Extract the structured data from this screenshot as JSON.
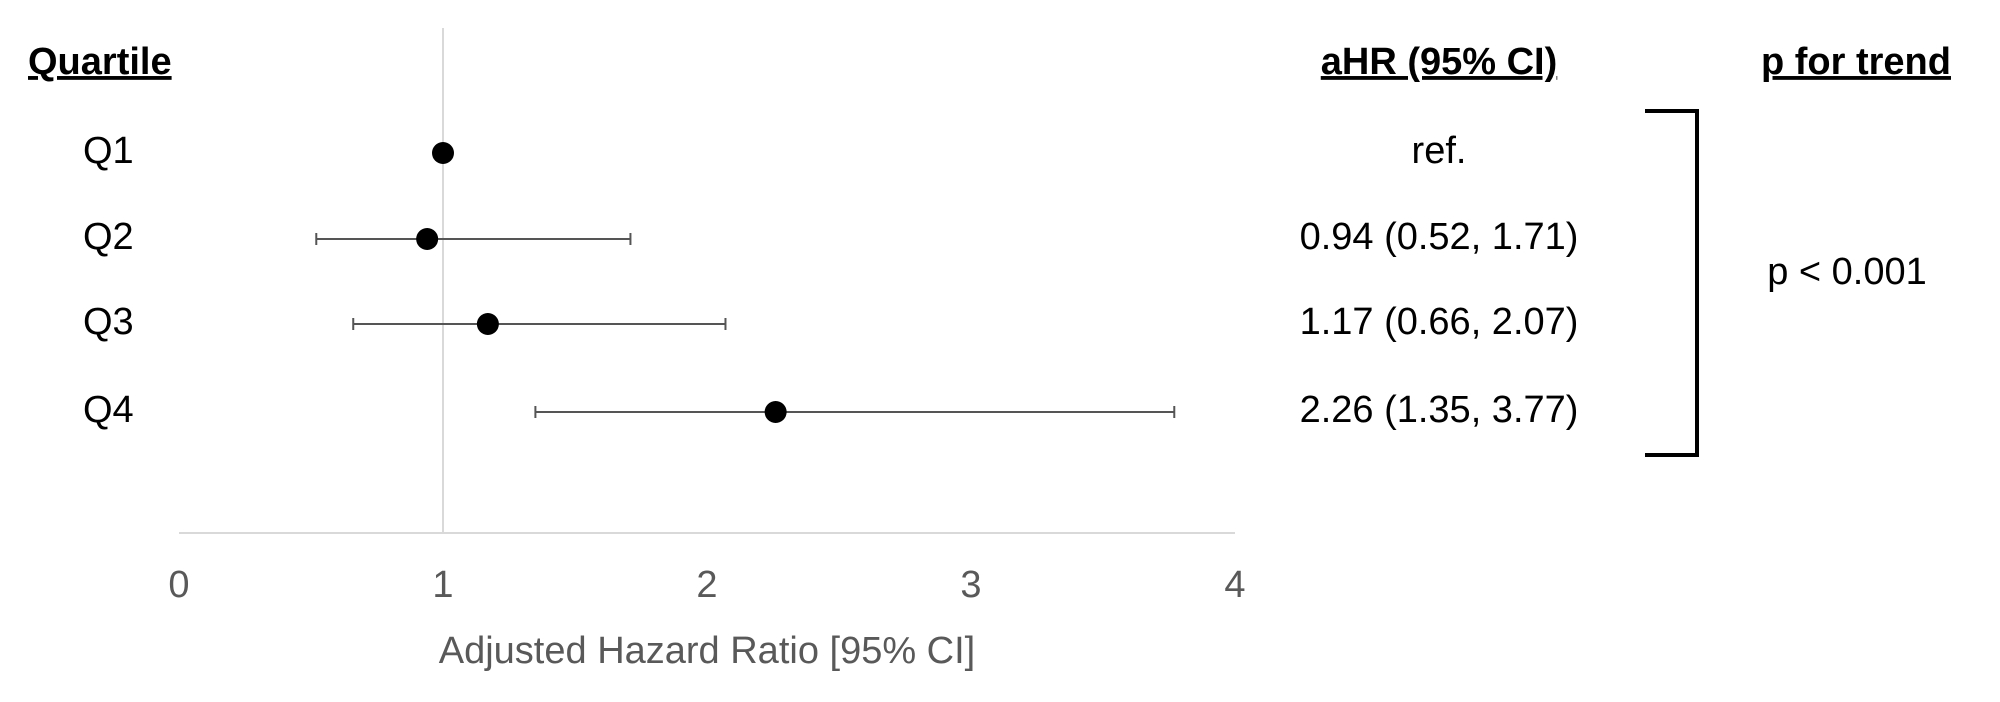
{
  "chart_data": {
    "type": "forest",
    "category_header": "Quartile",
    "value_header": "aHR (95% CI)",
    "trend_header": "p for trend",
    "trend_label": "p < 0.001",
    "x_label": "Adjusted Hazard Ratio [95% CI]",
    "categories": [
      "Q1",
      "Q2",
      "Q3",
      "Q4"
    ],
    "values": [
      1,
      0.94,
      1.17,
      2.26
    ],
    "lower": [
      null,
      0.52,
      0.66,
      1.35
    ],
    "upper": [
      null,
      1.71,
      2.07,
      3.77
    ],
    "value_labels": [
      "ref.",
      "0.94 (0.52, 1.71)",
      "1.17 (0.66, 2.07)",
      "2.26 (1.35, 3.77)"
    ],
    "reference_line": 1,
    "xlim": [
      0,
      4
    ],
    "xticks": [
      0,
      1,
      2,
      3,
      4
    ],
    "color": "#000000"
  }
}
